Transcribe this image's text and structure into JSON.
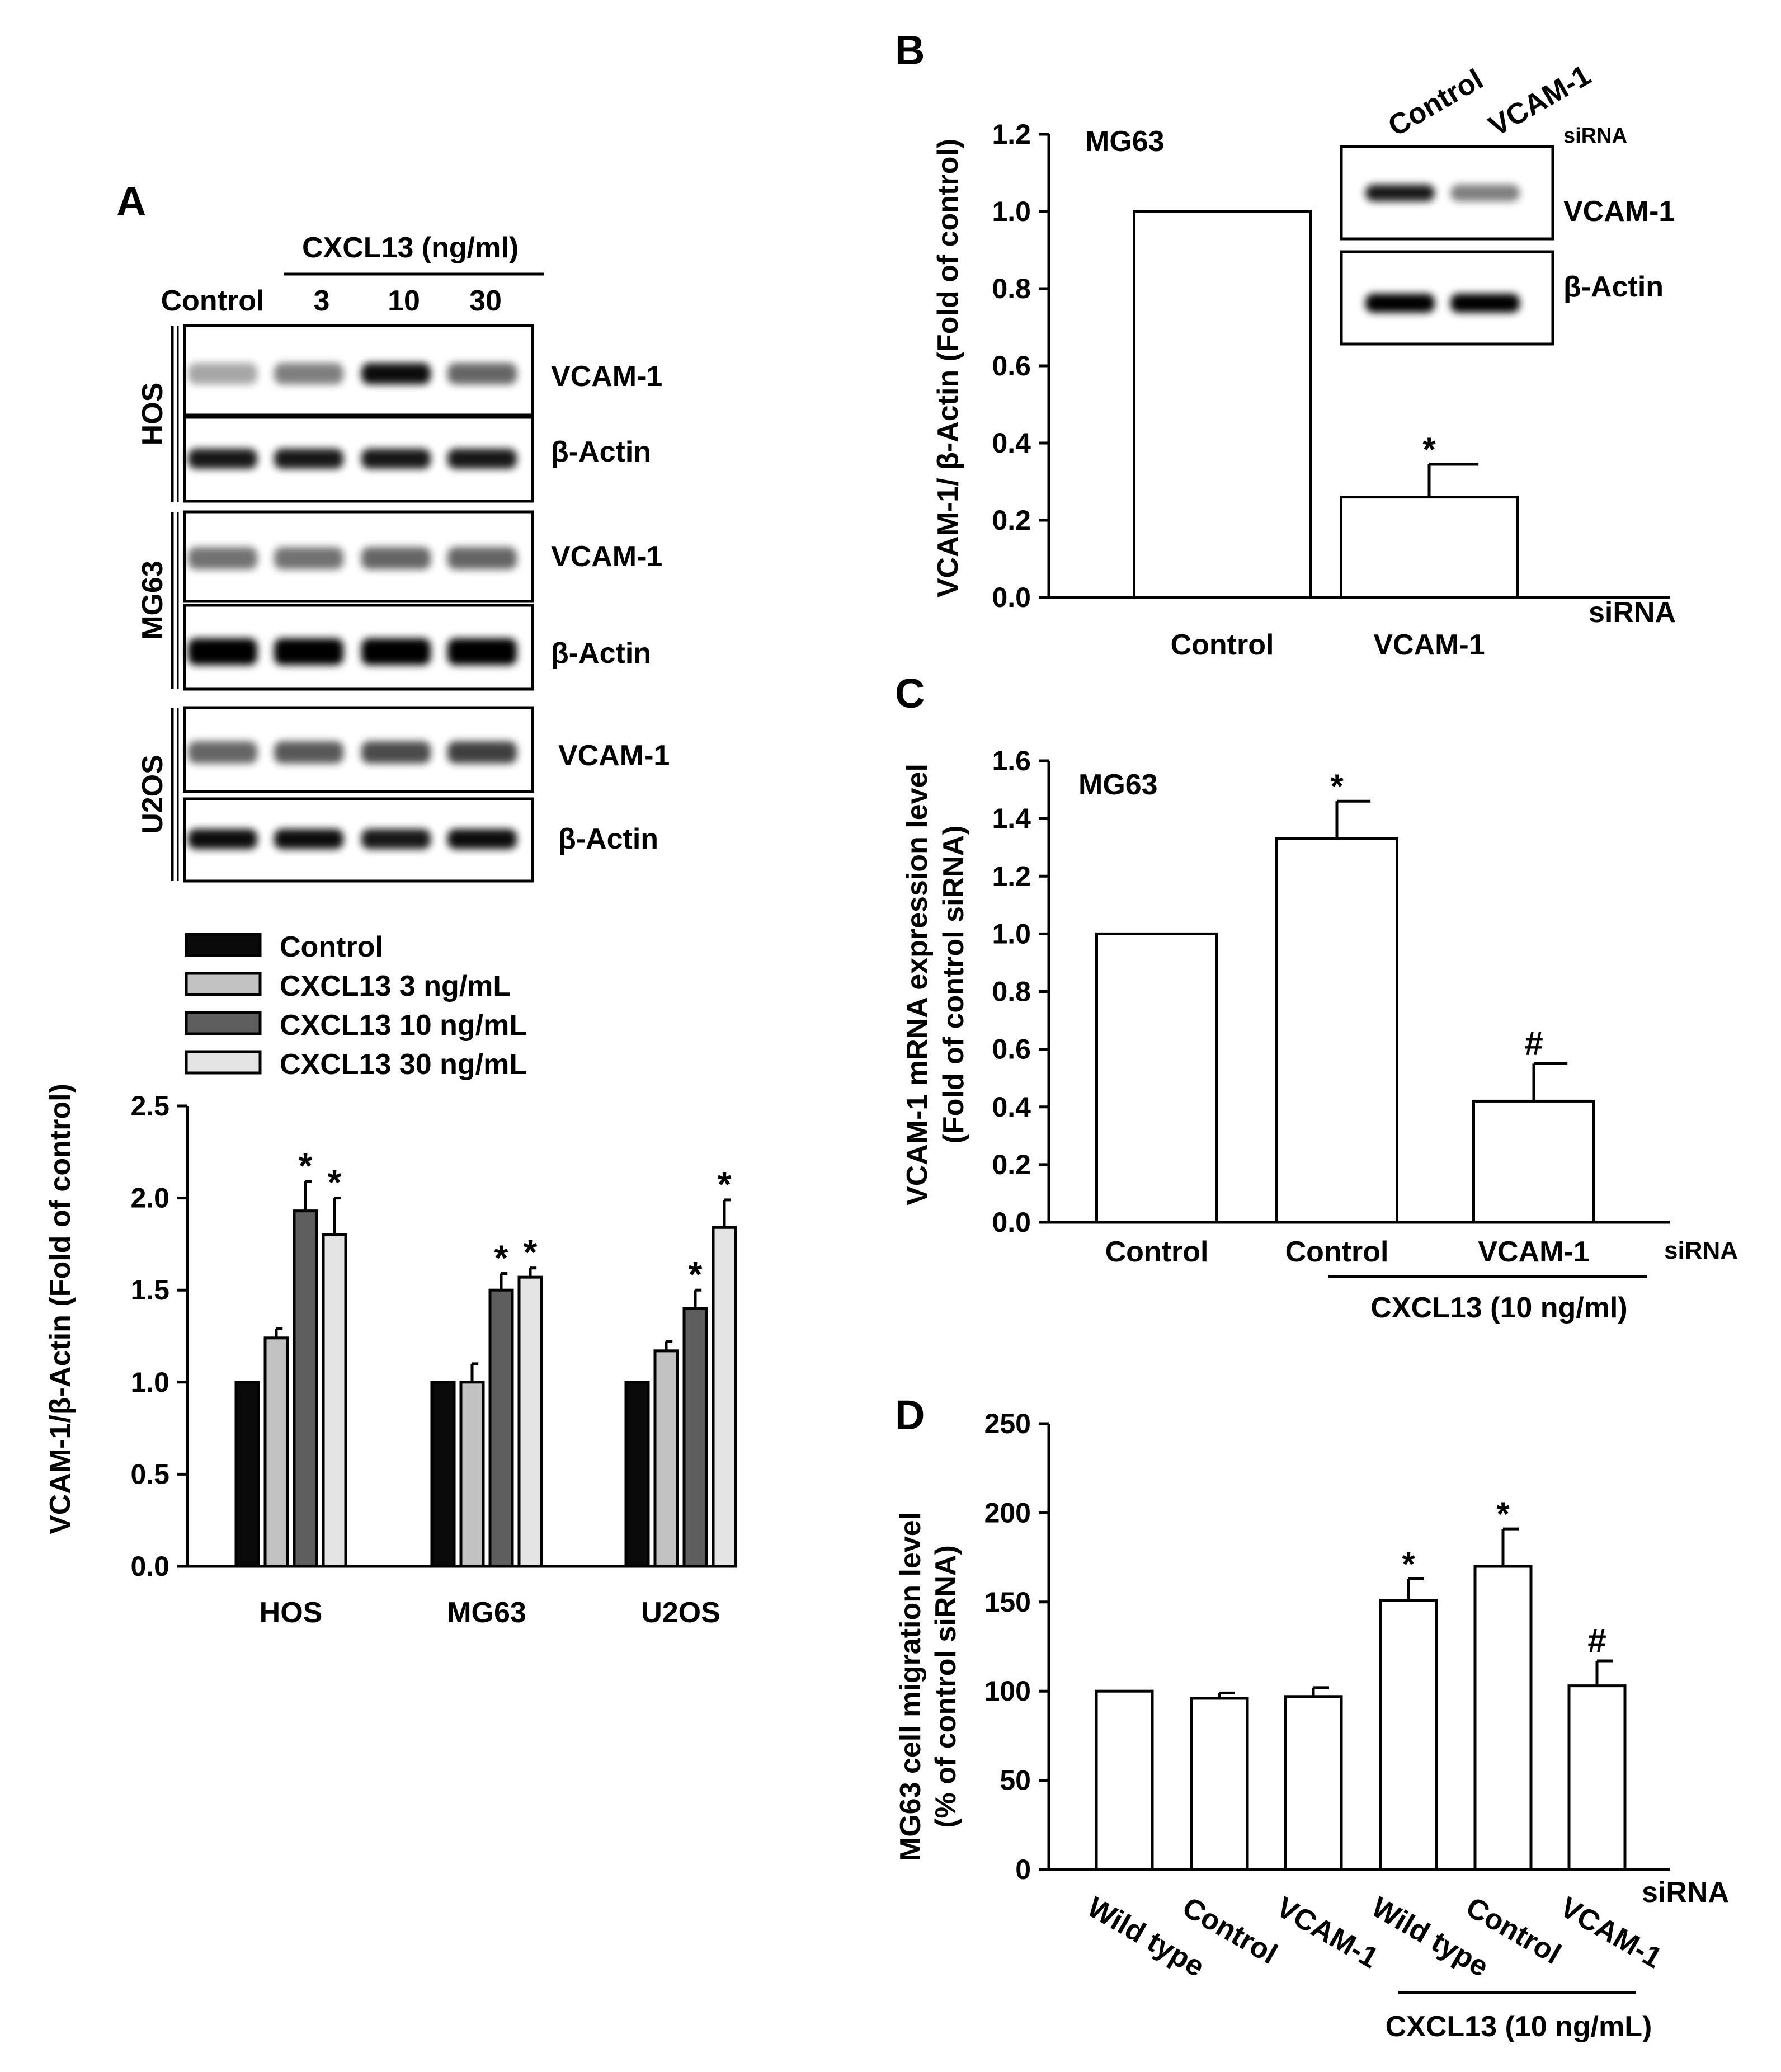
{
  "chart_data": [
    {
      "id": "A-blot",
      "type": "western_blot",
      "panel_label": "A",
      "treatment_label": "CXCL13 (ng/ml)",
      "lanes": [
        "Control",
        "3",
        "10",
        "30"
      ],
      "groups": [
        {
          "cell_line": "HOS",
          "vcam_label": "VCAM-1",
          "actin_label": "β-Actin",
          "vcam_band_intensity": [
            0.35,
            0.5,
            0.95,
            0.6
          ],
          "actin_band_intensity": [
            0.9,
            0.9,
            0.9,
            0.9
          ]
        },
        {
          "cell_line": "MG63",
          "vcam_label": "VCAM-1",
          "actin_label": "β-Actin",
          "vcam_band_intensity": [
            0.55,
            0.55,
            0.6,
            0.6
          ],
          "actin_band_intensity": [
            1.0,
            1.0,
            1.0,
            1.0
          ]
        },
        {
          "cell_line": "U2OS",
          "vcam_label": "VCAM-1",
          "actin_label": "β-Actin",
          "vcam_band_intensity": [
            0.6,
            0.65,
            0.7,
            0.75
          ],
          "actin_band_intensity": [
            0.95,
            0.95,
            0.9,
            0.95
          ]
        }
      ]
    },
    {
      "id": "A-bar",
      "type": "bar",
      "ylabel": "VCAM-1/β-Actin (Fold of control)",
      "categories": [
        "HOS",
        "MG63",
        "U2OS"
      ],
      "ylim": [
        0,
        2.5
      ],
      "yticks": [
        "0.0",
        "0.5",
        "1.0",
        "1.5",
        "2.0",
        "2.5"
      ],
      "legend_position": "top",
      "series": [
        {
          "name": "Control",
          "color": "#0a0a0a",
          "values": [
            1.0,
            1.0,
            1.0
          ],
          "errors": [
            0,
            0,
            0
          ],
          "marks": [
            "",
            "",
            ""
          ]
        },
        {
          "name": "CXCL13 3 ng/mL",
          "color": "#c2c2c2",
          "values": [
            1.24,
            1.0,
            1.17
          ],
          "errors": [
            0.05,
            0.1,
            0.05
          ],
          "marks": [
            "",
            "",
            ""
          ]
        },
        {
          "name": "CXCL13 10 ng/mL",
          "color": "#5e5e5e",
          "values": [
            1.93,
            1.5,
            1.4
          ],
          "errors": [
            0.16,
            0.09,
            0.1
          ],
          "marks": [
            "*",
            "*",
            "*"
          ]
        },
        {
          "name": "CXCL13  30 ng/mL",
          "color": "#e4e4e4",
          "values": [
            1.8,
            1.57,
            1.84
          ],
          "errors": [
            0.2,
            0.05,
            0.15
          ],
          "marks": [
            "*",
            "*",
            "*"
          ]
        }
      ]
    },
    {
      "id": "B",
      "type": "bar",
      "panel_label": "B",
      "ylabel": "VCAM-1/ β-Actin (Fold of control)",
      "annotation": "MG63",
      "categories": [
        "Control",
        "VCAM-1"
      ],
      "suffix_label": "siRNA",
      "ylim": [
        0,
        1.2
      ],
      "yticks": [
        "0.0",
        "0.2",
        "0.4",
        "0.6",
        "0.8",
        "1.0",
        "1.2"
      ],
      "values": [
        1.0,
        0.26
      ],
      "errors": [
        0,
        0.085
      ],
      "marks": [
        "",
        "*"
      ],
      "inset_blot": {
        "lanes": [
          "Control",
          "VCAM-1"
        ],
        "suffix_label": "siRNA",
        "rows": [
          {
            "label": "VCAM-1",
            "intensity": [
              0.9,
              0.5
            ]
          },
          {
            "label": "β-Actin",
            "intensity": [
              1.0,
              1.0
            ]
          }
        ]
      }
    },
    {
      "id": "C",
      "type": "bar",
      "panel_label": "C",
      "ylabel": [
        "VCAM-1 mRNA expression level",
        "(Fold of control siRNA)"
      ],
      "annotation": "MG63",
      "categories": [
        "Control",
        "Control",
        "VCAM-1"
      ],
      "suffix_label": "siRNA",
      "treatment_label": "CXCL13 (10 ng/ml)",
      "ylim": [
        0,
        1.6
      ],
      "yticks": [
        "0.0",
        "0.2",
        "0.4",
        "0.6",
        "0.8",
        "1.0",
        "1.2",
        "1.4",
        "1.6"
      ],
      "values": [
        1.0,
        1.33,
        0.42
      ],
      "errors": [
        0,
        0.13,
        0.13
      ],
      "marks": [
        "",
        "*",
        "#"
      ]
    },
    {
      "id": "D",
      "type": "bar",
      "panel_label": "D",
      "ylabel": [
        "MG63 cell migration level",
        "(% of control siRNA)"
      ],
      "categories": [
        "Wild type",
        "Control",
        "VCAM-1",
        "Wild type",
        "Control",
        "VCAM-1"
      ],
      "suffix_label": "siRNA",
      "treatment_label": "CXCL13 (10 ng/mL)",
      "ylim": [
        0,
        250
      ],
      "yticks": [
        "0",
        "50",
        "100",
        "150",
        "200",
        "250"
      ],
      "values": [
        100,
        96,
        97,
        151,
        170,
        103
      ],
      "errors": [
        0,
        3,
        5,
        12,
        21,
        14
      ],
      "marks": [
        "",
        "",
        "",
        "*",
        "*",
        "#"
      ]
    }
  ]
}
